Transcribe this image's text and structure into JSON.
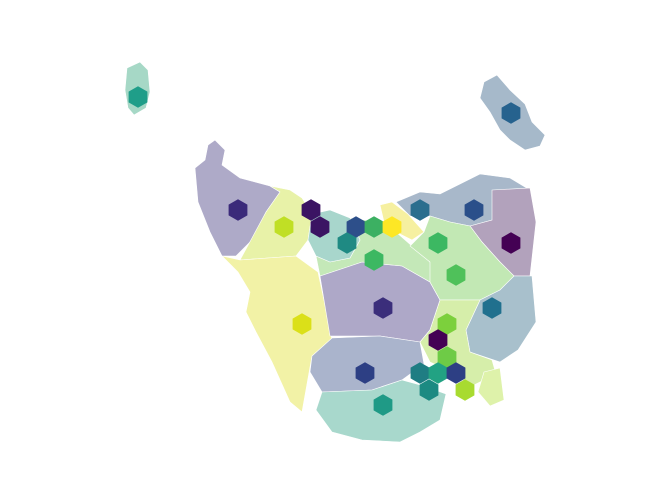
{
  "map": {
    "regions": [
      {
        "id": "king-island",
        "color": "#a6d8c6"
      },
      {
        "id": "flinders-island",
        "color": "#a6b9ca"
      },
      {
        "id": "north-west",
        "color": "#aeaac8"
      },
      {
        "id": "north-west-inland",
        "color": "#e8f2a8"
      },
      {
        "id": "west-coast",
        "color": "#f2f2a6"
      },
      {
        "id": "central",
        "color": "#aea8c8"
      },
      {
        "id": "north-central",
        "color": "#c4e8b8"
      },
      {
        "id": "north-teal",
        "color": "#a8d6cc"
      },
      {
        "id": "north-coast-yellow",
        "color": "#f6f0a0"
      },
      {
        "id": "north-east",
        "color": "#a8b8ca"
      },
      {
        "id": "north-east-coast",
        "color": "#b2a2bc"
      },
      {
        "id": "east-midlands",
        "color": "#c2e8b4"
      },
      {
        "id": "east-coast",
        "color": "#a8c0cc"
      },
      {
        "id": "south-east",
        "color": "#d6eeaa"
      },
      {
        "id": "tasman",
        "color": "#def2aa"
      },
      {
        "id": "south-central",
        "color": "#aab4cc"
      },
      {
        "id": "south",
        "color": "#a8d8cc"
      }
    ],
    "hexagons": [
      {
        "color": "#1f9e89"
      },
      {
        "color": "#26628e"
      },
      {
        "color": "#3b2a7a"
      },
      {
        "color": "#3b1463"
      },
      {
        "color": "#3b1463"
      },
      {
        "color": "#c0df25"
      },
      {
        "color": "#2d4f8a"
      },
      {
        "color": "#3cb062"
      },
      {
        "color": "#fde725"
      },
      {
        "color": "#2a6e8e"
      },
      {
        "color": "#2a4f8a"
      },
      {
        "color": "#1f8a83"
      },
      {
        "color": "#3cb862"
      },
      {
        "color": "#440154"
      },
      {
        "color": "#3cb862"
      },
      {
        "color": "#4fc15a"
      },
      {
        "color": "#3b2e7b"
      },
      {
        "color": "#20708e"
      },
      {
        "color": "#dbe018"
      },
      {
        "color": "#7cd03c"
      },
      {
        "color": "#440154"
      },
      {
        "color": "#6ecb46"
      },
      {
        "color": "#2d3f84"
      },
      {
        "color": "#1f7d83"
      },
      {
        "color": "#22a283"
      },
      {
        "color": "#2d3f84"
      },
      {
        "color": "#1c8a82"
      },
      {
        "color": "#a8db30"
      },
      {
        "color": "#1f9a86"
      }
    ]
  }
}
